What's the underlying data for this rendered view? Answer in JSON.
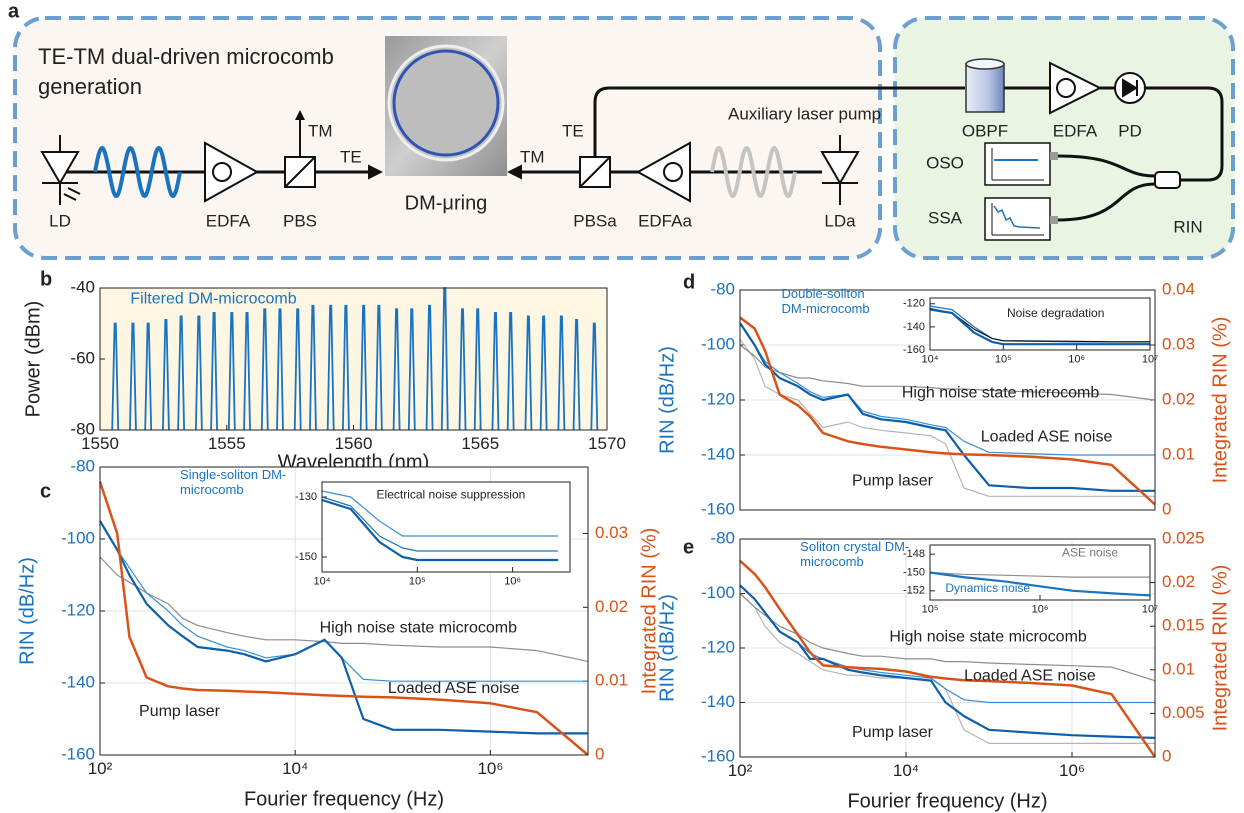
{
  "diagram": {
    "panel_label": "a",
    "title": [
      "TE-TM dual-driven microcomb",
      "generation"
    ],
    "labels": {
      "ld": "LD",
      "edfa": "EDFA",
      "pbs": "PBS",
      "tm1": "TM",
      "te1": "TE",
      "ring": "DM-μring",
      "tm2": "TM",
      "te2": "TE",
      "pbsa": "PBSa",
      "edfaa": "EDFAa",
      "lda": "LDa",
      "aux": "Auxiliary laser pump",
      "obpf": "OBPF",
      "edfa2": "EDFA",
      "pd": "PD",
      "oso": "OSO",
      "ssa": "SSA",
      "rin": "RIN"
    }
  },
  "chart_data": [
    {
      "type": "spectrum",
      "panel_label": "b",
      "xlabel": "Wavelength (nm)",
      "ylabel": "Power (dBm)",
      "annotations": [
        {
          "text": "Filtered DM-microcomb",
          "color": "#1a73c0"
        }
      ],
      "x": [
        1550.6,
        1551.3,
        1551.9,
        1552.6,
        1553.2,
        1553.9,
        1554.5,
        1555.2,
        1555.8,
        1556.5,
        1557.1,
        1557.8,
        1558.4,
        1559.1,
        1559.7,
        1560.4,
        1561.0,
        1561.7,
        1562.3,
        1563.0,
        1563.6,
        1564.3,
        1564.9,
        1565.6,
        1566.2,
        1566.9,
        1567.5,
        1568.2,
        1568.8,
        1569.5
      ],
      "series": [
        {
          "color": "#1a73c0",
          "values": [
            -50,
            -50,
            -50,
            -49,
            -48,
            -48,
            -47,
            -47,
            -47,
            -46,
            -46,
            -46,
            -45,
            -45,
            -45,
            -45,
            -45,
            -46,
            -46,
            -45,
            -40,
            -46,
            -46,
            -47,
            -47,
            -48,
            -48,
            -48,
            -49,
            -50
          ]
        }
      ],
      "xlim": [
        1550,
        1570
      ],
      "xticks": [
        1550,
        1555,
        1560,
        1565,
        1570
      ],
      "ylim": [
        -80,
        -40
      ],
      "yticks": [
        -40,
        -60,
        -80
      ],
      "background": "#fdf6e3",
      "grid": false
    },
    {
      "type": "line",
      "panel_label": "c",
      "xscale": "log",
      "xlabel": "Fourier frequency (Hz)",
      "ylabel": "RIN (dB/Hz)",
      "y2label": "Integrated RIN (%)",
      "axis_colors": {
        "y": "#1a73c0",
        "y2": "#d95319"
      },
      "annotations": [
        {
          "text": "Single-soliton DM-microcomb",
          "color": "#1a73c0"
        },
        {
          "text": "High noise state microcomb",
          "color": "#222222"
        },
        {
          "text": "Loaded ASE noise",
          "color": "#222222"
        },
        {
          "text": "Pump laser",
          "color": "#222222"
        }
      ],
      "x": [
        100,
        150,
        200,
        300,
        500,
        700,
        1000,
        2000,
        3000,
        5000,
        10000,
        20000,
        30000,
        50000,
        100000,
        300000,
        1000000,
        3000000,
        10000000
      ],
      "series": [
        {
          "color": "#8c8c8c",
          "values": [
            -105,
            -110,
            -112,
            -115,
            -118,
            -122,
            -124,
            -126,
            -127,
            -128,
            -128,
            -128.5,
            -129,
            -129,
            -129.5,
            -130,
            -130,
            -131,
            -134
          ]
        },
        {
          "color": "#3a8fd6",
          "values": [
            -95,
            -103,
            -108,
            -115,
            -120,
            -124,
            -127,
            -130,
            -131,
            -133,
            -132,
            -128,
            -133,
            -139,
            -139.5,
            -139.5,
            -139.5,
            -139.5,
            -139.5
          ]
        },
        {
          "color": "#0e5fa8",
          "values": [
            -95,
            -103,
            -110,
            -118,
            -124,
            -127,
            -130,
            -131,
            -132,
            -134,
            -132,
            -128,
            -133,
            -150,
            -153,
            -153,
            -153.5,
            -154,
            -154
          ]
        },
        {
          "color": "#d95319",
          "axis": "y2",
          "values": [
            0.037,
            0.03,
            0.016,
            0.0105,
            0.0093,
            0.009,
            0.0088,
            0.0087,
            0.0086,
            0.0085,
            0.0083,
            0.0081,
            0.008,
            0.0079,
            0.0078,
            0.0075,
            0.007,
            0.0058,
            0
          ]
        }
      ],
      "xlim": [
        100,
        10000000
      ],
      "xticks": [
        {
          "value": 100,
          "label": "10²"
        },
        {
          "value": 10000,
          "label": "10⁴"
        },
        {
          "value": 1000000,
          "label": "10⁶"
        }
      ],
      "ylim": [
        -160,
        -80
      ],
      "yticks": [
        -160,
        -140,
        -120,
        -100,
        -80
      ],
      "y2lim": [
        0,
        0.039
      ],
      "y2ticks": [
        0,
        0.01,
        0.02,
        0.03
      ],
      "grid": true
    },
    {
      "type": "line",
      "xscale": "log",
      "annotations": [
        {
          "text": "Electrical noise suppression",
          "color": "#222222"
        }
      ],
      "x": [
        10000,
        20000,
        40000,
        70000,
        100000,
        300000,
        1000000,
        3000000
      ],
      "series": [
        {
          "color": "#3a8fd6",
          "values": [
            -128,
            -130,
            -138,
            -143,
            -143,
            -143,
            -143,
            -143
          ]
        },
        {
          "color": "#1a73c0",
          "values": [
            -130,
            -133,
            -143,
            -147,
            -148,
            -148,
            -148,
            -148
          ]
        },
        {
          "color": "#0e5fa8",
          "values": [
            -131,
            -134,
            -145,
            -150,
            -151,
            -151,
            -151,
            -151
          ]
        }
      ],
      "xlim": [
        10000,
        4000000
      ],
      "xticks": [
        {
          "value": 10000,
          "label": "10⁴"
        },
        {
          "value": 100000,
          "label": "10⁵"
        },
        {
          "value": 1000000,
          "label": "10⁶"
        }
      ],
      "ylim": [
        -155,
        -125
      ],
      "yticks": [
        -130,
        -150
      ],
      "grid": false
    },
    {
      "type": "line",
      "panel_label": "d",
      "xscale": "log",
      "ylabel": "RIN (dB/Hz)",
      "y2label": "Integrated RIN (%)",
      "axis_colors": {
        "y": "#1a73c0",
        "y2": "#d95319"
      },
      "annotations": [
        {
          "text": "Double-soliton DM-microcomb",
          "color": "#1a73c0"
        },
        {
          "text": "High noise state microcomb",
          "color": "#222222"
        },
        {
          "text": "Loaded ASE noise",
          "color": "#222222"
        },
        {
          "text": "Pump laser",
          "color": "#222222"
        }
      ],
      "x": [
        100,
        150,
        200,
        300,
        500,
        700,
        1000,
        2000,
        3000,
        5000,
        10000,
        20000,
        30000,
        50000,
        100000,
        300000,
        1000000,
        3000000,
        10000000
      ],
      "series": [
        {
          "color": "#b5b5b5",
          "values": [
            -98,
            -105,
            -115,
            -118,
            -120,
            -125,
            -130,
            -128,
            -130,
            -131,
            -132,
            -133,
            -136,
            -152,
            -155,
            -155,
            -155,
            -155,
            -155
          ]
        },
        {
          "color": "#8c8c8c",
          "values": [
            -100,
            -104,
            -108,
            -110,
            -112,
            -112,
            -113,
            -114,
            -115,
            -115,
            -115,
            -115.5,
            -116,
            -116,
            -116.5,
            -117,
            -117.5,
            -118,
            -120
          ]
        },
        {
          "color": "#3a8fd6",
          "values": [
            -92,
            -100,
            -106,
            -110,
            -114,
            -117,
            -119,
            -118,
            -124,
            -126,
            -127,
            -129,
            -130,
            -135,
            -139,
            -139.5,
            -140,
            -140,
            -140
          ]
        },
        {
          "color": "#0e5fa8",
          "values": [
            -92,
            -100,
            -107,
            -112,
            -115,
            -118,
            -120,
            -118,
            -125,
            -127,
            -128,
            -130,
            -131,
            -140,
            -151,
            -152,
            -152,
            -153,
            -153
          ]
        },
        {
          "color": "#d95319",
          "axis": "y2",
          "values": [
            0.035,
            0.033,
            0.029,
            0.021,
            0.019,
            0.017,
            0.014,
            0.0125,
            0.012,
            0.0115,
            0.011,
            0.0105,
            0.0103,
            0.0101,
            0.01,
            0.0097,
            0.0092,
            0.0082,
            0.001
          ]
        }
      ],
      "xlim": [
        100,
        10000000
      ],
      "ylim": [
        -160,
        -80
      ],
      "yticks": [
        -160,
        -140,
        -120,
        -100,
        -80
      ],
      "y2lim": [
        0,
        0.04
      ],
      "y2ticks": [
        0,
        0.01,
        0.02,
        0.03,
        0.04
      ],
      "grid": true
    },
    {
      "type": "line",
      "xscale": "log",
      "annotations": [
        {
          "text": "Noise degradation",
          "color": "#222222"
        }
      ],
      "x": [
        10000,
        20000,
        40000,
        70000,
        100000,
        1000000,
        3000000,
        10000000
      ],
      "series": [
        {
          "color": "#1a73c0",
          "values": [
            -122,
            -125,
            -140,
            -150,
            -152,
            -153,
            -153,
            -153
          ]
        },
        {
          "color": "#111111",
          "values": [
            -124,
            -128,
            -142,
            -150,
            -152,
            -152.5,
            -153,
            -153
          ]
        },
        {
          "color": "#0e5fa8",
          "values": [
            -125,
            -128,
            -145,
            -153,
            -155,
            -155,
            -155,
            -155
          ]
        }
      ],
      "xlim": [
        10000,
        10000000
      ],
      "xticks": [
        {
          "value": 10000,
          "label": "10⁴"
        },
        {
          "value": 100000,
          "label": "10⁵"
        },
        {
          "value": 1000000,
          "label": "10⁶"
        },
        {
          "value": 10000000,
          "label": "10⁷"
        }
      ],
      "ylim": [
        -160,
        -115
      ],
      "yticks": [
        -120,
        -140,
        -160
      ],
      "grid": false
    },
    {
      "type": "line",
      "panel_label": "e",
      "xscale": "log",
      "xlabel": "Fourier frequency (Hz)",
      "ylabel": "RIN (dB/Hz)",
      "y2label": "Integrated RIN (%)",
      "axis_colors": {
        "y": "#1a73c0",
        "y2": "#d95319"
      },
      "annotations": [
        {
          "text": "Soliton crystal DM-microcomb",
          "color": "#1a73c0"
        },
        {
          "text": "High noise state microcomb",
          "color": "#222222"
        },
        {
          "text": "Loaded ASE noise",
          "color": "#222222"
        },
        {
          "text": "Pump laser",
          "color": "#222222"
        }
      ],
      "x": [
        100,
        150,
        200,
        300,
        500,
        700,
        1000,
        2000,
        3000,
        5000,
        10000,
        20000,
        30000,
        50000,
        100000,
        300000,
        1000000,
        3000000,
        10000000
      ],
      "series": [
        {
          "color": "#b5b5b5",
          "values": [
            -100,
            -105,
            -112,
            -118,
            -122,
            -125,
            -128,
            -130,
            -130,
            -131,
            -131,
            -131.5,
            -135,
            -150,
            -155,
            -155,
            -155,
            -155,
            -155
          ]
        },
        {
          "color": "#8c8c8c",
          "values": [
            -100,
            -105,
            -108,
            -112,
            -115,
            -118,
            -120,
            -122,
            -123,
            -123,
            -124,
            -124,
            -125,
            -125,
            -125.5,
            -126,
            -126.5,
            -127,
            -132
          ]
        },
        {
          "color": "#3a8fd6",
          "values": [
            -97,
            -102,
            -107,
            -114,
            -118,
            -122,
            -124,
            -127,
            -128,
            -129,
            -130,
            -131,
            -135,
            -139,
            -140,
            -140,
            -140,
            -140,
            -140
          ]
        },
        {
          "color": "#0e5fa8",
          "values": [
            -97,
            -102,
            -107,
            -114,
            -118,
            -124,
            -124,
            -128,
            -129,
            -130,
            -131,
            -132,
            -140,
            -145,
            -150,
            -151,
            -152,
            -152.5,
            -153
          ]
        },
        {
          "color": "#d95319",
          "axis": "y2",
          "values": [
            0.0225,
            0.021,
            0.0195,
            0.017,
            0.014,
            0.012,
            0.0105,
            0.0103,
            0.0102,
            0.0101,
            0.0098,
            0.0092,
            0.009,
            0.0088,
            0.0087,
            0.0085,
            0.0082,
            0.0072,
            0
          ]
        }
      ],
      "xlim": [
        100,
        10000000
      ],
      "xticks": [
        {
          "value": 100,
          "label": "10²"
        },
        {
          "value": 10000,
          "label": "10⁴"
        },
        {
          "value": 1000000,
          "label": "10⁶"
        }
      ],
      "ylim": [
        -160,
        -80
      ],
      "yticks": [
        -160,
        -140,
        -120,
        -100,
        -80
      ],
      "y2lim": [
        0,
        0.025
      ],
      "y2ticks": [
        0,
        0.005,
        0.01,
        0.015,
        0.02,
        0.025
      ],
      "grid": true
    },
    {
      "type": "line",
      "xscale": "log",
      "annotations": [
        {
          "text": "ASE noise",
          "color": "#777777"
        },
        {
          "text": "Dynamics noise",
          "color": "#1a73c0"
        }
      ],
      "x": [
        100000,
        200000,
        500000,
        1000000,
        2000000,
        5000000,
        10000000
      ],
      "series": [
        {
          "color": "#8c8c8c",
          "values": [
            -150,
            -150.2,
            -150.3,
            -150.4,
            -150.5,
            -150.5,
            -150.5
          ]
        },
        {
          "color": "#1a73c0",
          "values": [
            -150,
            -150.5,
            -151,
            -151.5,
            -152,
            -152.3,
            -152.5
          ]
        }
      ],
      "xlim": [
        100000,
        10000000
      ],
      "xticks": [
        {
          "value": 100000,
          "label": "10⁵"
        },
        {
          "value": 1000000,
          "label": "10⁶"
        },
        {
          "value": 10000000,
          "label": "10⁷"
        }
      ],
      "ylim": [
        -153,
        -147
      ],
      "yticks": [
        -148,
        -150,
        -152
      ],
      "grid": false
    }
  ]
}
